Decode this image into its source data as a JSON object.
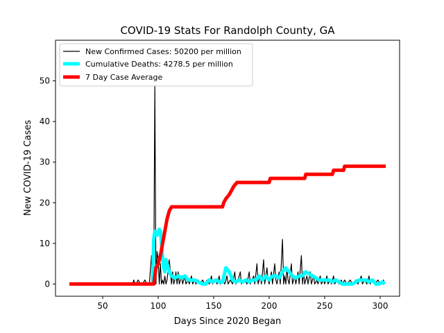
{
  "chart_data": {
    "type": "line",
    "title": "COVID-19 Stats For Randolph County, GA",
    "xlabel": "Days Since 2020 Began",
    "ylabel": "New COVID-19 Cases",
    "xlim": [
      7.5,
      317.5
    ],
    "ylim": [
      -3,
      60
    ],
    "xticks": [
      50,
      100,
      150,
      200,
      250,
      300
    ],
    "yticks": [
      0,
      10,
      20,
      30,
      40,
      50
    ],
    "grid": false,
    "legend_position": "top-left",
    "series": [
      {
        "name": "New Confirmed Cases: 50200 per million",
        "color": "#000000",
        "width": "thin",
        "points": [
          [
            20,
            0
          ],
          [
            76,
            0
          ],
          [
            77,
            0
          ],
          [
            78,
            1
          ],
          [
            79,
            0
          ],
          [
            80,
            0
          ],
          [
            82,
            1
          ],
          [
            84,
            0
          ],
          [
            86,
            0
          ],
          [
            88,
            1
          ],
          [
            90,
            0
          ],
          [
            92,
            0
          ],
          [
            94,
            7
          ],
          [
            95,
            0
          ],
          [
            96,
            0
          ],
          [
            97,
            49
          ],
          [
            98,
            0
          ],
          [
            99,
            8
          ],
          [
            100,
            6
          ],
          [
            101,
            0
          ],
          [
            102,
            5
          ],
          [
            103,
            0
          ],
          [
            104,
            1
          ],
          [
            105,
            0
          ],
          [
            106,
            2
          ],
          [
            107,
            0
          ],
          [
            108,
            1
          ],
          [
            110,
            6
          ],
          [
            112,
            0
          ],
          [
            113,
            3
          ],
          [
            114,
            0
          ],
          [
            115,
            1
          ],
          [
            116,
            3
          ],
          [
            117,
            0
          ],
          [
            118,
            3
          ],
          [
            119,
            0
          ],
          [
            121,
            2
          ],
          [
            122,
            0
          ],
          [
            124,
            2
          ],
          [
            125,
            0
          ],
          [
            127,
            1
          ],
          [
            128,
            0
          ],
          [
            130,
            2
          ],
          [
            131,
            0
          ],
          [
            133,
            1
          ],
          [
            134,
            0
          ],
          [
            136,
            1
          ],
          [
            138,
            0
          ],
          [
            140,
            1
          ],
          [
            142,
            0
          ],
          [
            144,
            1
          ],
          [
            146,
            0
          ],
          [
            148,
            2
          ],
          [
            149,
            0
          ],
          [
            152,
            1
          ],
          [
            153,
            0
          ],
          [
            155,
            2
          ],
          [
            156,
            0
          ],
          [
            158,
            1
          ],
          [
            160,
            0
          ],
          [
            162,
            2
          ],
          [
            163,
            0
          ],
          [
            165,
            1
          ],
          [
            167,
            0
          ],
          [
            169,
            3
          ],
          [
            170,
            0
          ],
          [
            172,
            1
          ],
          [
            174,
            3
          ],
          [
            175,
            0
          ],
          [
            178,
            1
          ],
          [
            180,
            0
          ],
          [
            182,
            3
          ],
          [
            183,
            0
          ],
          [
            186,
            2
          ],
          [
            187,
            0
          ],
          [
            189,
            5
          ],
          [
            190,
            0
          ],
          [
            192,
            2
          ],
          [
            193,
            0
          ],
          [
            195,
            6
          ],
          [
            196,
            0
          ],
          [
            198,
            4
          ],
          [
            199,
            1
          ],
          [
            200,
            0
          ],
          [
            202,
            3
          ],
          [
            203,
            0
          ],
          [
            205,
            5
          ],
          [
            206,
            1
          ],
          [
            207,
            0
          ],
          [
            209,
            3
          ],
          [
            210,
            0
          ],
          [
            212,
            11
          ],
          [
            213,
            0
          ],
          [
            214,
            2
          ],
          [
            215,
            0
          ],
          [
            216,
            4
          ],
          [
            217,
            1
          ],
          [
            218,
            0
          ],
          [
            220,
            5
          ],
          [
            221,
            0
          ],
          [
            223,
            2
          ],
          [
            224,
            0
          ],
          [
            226,
            3
          ],
          [
            227,
            0
          ],
          [
            229,
            7
          ],
          [
            230,
            0
          ],
          [
            231,
            3
          ],
          [
            232,
            0
          ],
          [
            234,
            2
          ],
          [
            235,
            0
          ],
          [
            237,
            3
          ],
          [
            238,
            0
          ],
          [
            240,
            2
          ],
          [
            241,
            0
          ],
          [
            243,
            1
          ],
          [
            244,
            0
          ],
          [
            246,
            2
          ],
          [
            247,
            0
          ],
          [
            249,
            1
          ],
          [
            250,
            0
          ],
          [
            252,
            2
          ],
          [
            253,
            0
          ],
          [
            255,
            1
          ],
          [
            256,
            0
          ],
          [
            258,
            2
          ],
          [
            259,
            0
          ],
          [
            261,
            1
          ],
          [
            263,
            0
          ],
          [
            265,
            1
          ],
          [
            266,
            0
          ],
          [
            268,
            1
          ],
          [
            270,
            0
          ],
          [
            273,
            1
          ],
          [
            275,
            0
          ],
          [
            278,
            1
          ],
          [
            280,
            0
          ],
          [
            283,
            2
          ],
          [
            284,
            0
          ],
          [
            286,
            1
          ],
          [
            288,
            0
          ],
          [
            290,
            2
          ],
          [
            291,
            0
          ],
          [
            293,
            1
          ],
          [
            295,
            0
          ],
          [
            298,
            1
          ],
          [
            300,
            0
          ],
          [
            303,
            1
          ],
          [
            304,
            0
          ]
        ]
      },
      {
        "name": "Cumulative Deaths: 4278.5 per million",
        "color": "#00ffff",
        "width": "thick",
        "points": [
          [
            95,
            0
          ],
          [
            96,
            11
          ],
          [
            97,
            13
          ],
          [
            99,
            12
          ],
          [
            100,
            13
          ],
          [
            101,
            13.5
          ],
          [
            102,
            13
          ],
          [
            103,
            10
          ],
          [
            104,
            6
          ],
          [
            105,
            4
          ],
          [
            106,
            3
          ],
          [
            107,
            6
          ],
          [
            108,
            5
          ],
          [
            109,
            4
          ],
          [
            110,
            3
          ],
          [
            112,
            2
          ],
          [
            115,
            1.5
          ],
          [
            118,
            2
          ],
          [
            121,
            1.5
          ],
          [
            124,
            2
          ],
          [
            127,
            1
          ],
          [
            130,
            1
          ],
          [
            133,
            1
          ],
          [
            136,
            0.5
          ],
          [
            140,
            0
          ],
          [
            143,
            0
          ],
          [
            146,
            1
          ],
          [
            149,
            0.5
          ],
          [
            152,
            1
          ],
          [
            155,
            0.5
          ],
          [
            158,
            0.5
          ],
          [
            161,
            4
          ],
          [
            164,
            3
          ],
          [
            167,
            1
          ],
          [
            170,
            0.5
          ],
          [
            173,
            1
          ],
          [
            176,
            0.5
          ],
          [
            179,
            1
          ],
          [
            182,
            0.5
          ],
          [
            185,
            1
          ],
          [
            188,
            1
          ],
          [
            191,
            2
          ],
          [
            194,
            1
          ],
          [
            197,
            2
          ],
          [
            200,
            1
          ],
          [
            203,
            2
          ],
          [
            206,
            2
          ],
          [
            209,
            1.5
          ],
          [
            212,
            3
          ],
          [
            215,
            4
          ],
          [
            218,
            3
          ],
          [
            221,
            2
          ],
          [
            224,
            1.5
          ],
          [
            227,
            2
          ],
          [
            230,
            2
          ],
          [
            233,
            3
          ],
          [
            236,
            2.5
          ],
          [
            239,
            2
          ],
          [
            242,
            1.5
          ],
          [
            245,
            1
          ],
          [
            248,
            1
          ],
          [
            251,
            1
          ],
          [
            254,
            1
          ],
          [
            257,
            0.5
          ],
          [
            260,
            1
          ],
          [
            263,
            0.5
          ],
          [
            266,
            0
          ],
          [
            269,
            0
          ],
          [
            272,
            0
          ],
          [
            275,
            0
          ],
          [
            278,
            0.5
          ],
          [
            281,
            1
          ],
          [
            284,
            1
          ],
          [
            287,
            1
          ],
          [
            290,
            0.5
          ],
          [
            293,
            1
          ],
          [
            296,
            0
          ],
          [
            299,
            0
          ],
          [
            302,
            0.5
          ],
          [
            304,
            0
          ]
        ]
      },
      {
        "name": "7 Day Case Average",
        "color": "#ff0000",
        "width": "thick",
        "points": [
          [
            20,
            0
          ],
          [
            96,
            0
          ],
          [
            97,
            2
          ],
          [
            98,
            4
          ],
          [
            100,
            5
          ],
          [
            102,
            7
          ],
          [
            104,
            10
          ],
          [
            106,
            13
          ],
          [
            108,
            16
          ],
          [
            110,
            18
          ],
          [
            112,
            19
          ],
          [
            158,
            19
          ],
          [
            159,
            20
          ],
          [
            161,
            21
          ],
          [
            164,
            22
          ],
          [
            168,
            24
          ],
          [
            171,
            25
          ],
          [
            200,
            25
          ],
          [
            201,
            26
          ],
          [
            232,
            26
          ],
          [
            233,
            27
          ],
          [
            257,
            27
          ],
          [
            258,
            28
          ],
          [
            267,
            28
          ],
          [
            268,
            29
          ],
          [
            305,
            29
          ]
        ]
      }
    ]
  }
}
